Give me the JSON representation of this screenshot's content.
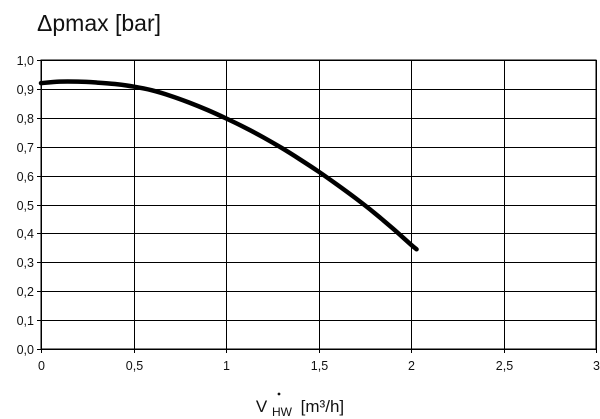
{
  "chart_data": {
    "type": "line",
    "title": "Δpmax [bar]",
    "xlabel": {
      "symbol": "V",
      "subscript": "HW",
      "unit": "[m³/h]"
    },
    "ylabel": "",
    "xlim": [
      0,
      3
    ],
    "ylim": [
      0,
      1
    ],
    "grid": true,
    "xticks": [
      {
        "value": 0,
        "label": "0"
      },
      {
        "value": 0.5,
        "label": "0,5"
      },
      {
        "value": 1,
        "label": "1"
      },
      {
        "value": 1.5,
        "label": "1,5"
      },
      {
        "value": 2,
        "label": "2"
      },
      {
        "value": 2.5,
        "label": "2,5"
      },
      {
        "value": 3,
        "label": "3"
      }
    ],
    "yticks": [
      {
        "value": 0.0,
        "label": "0,0"
      },
      {
        "value": 0.1,
        "label": "0,1"
      },
      {
        "value": 0.2,
        "label": "0,2"
      },
      {
        "value": 0.3,
        "label": "0,3"
      },
      {
        "value": 0.4,
        "label": "0,4"
      },
      {
        "value": 0.5,
        "label": "0,5"
      },
      {
        "value": 0.6,
        "label": "0,6"
      },
      {
        "value": 0.7,
        "label": "0,7"
      },
      {
        "value": 0.8,
        "label": "0,8"
      },
      {
        "value": 0.9,
        "label": "0,9"
      },
      {
        "value": 1.0,
        "label": "1,0"
      }
    ],
    "series": [
      {
        "color": "#000000",
        "x": [
          0,
          0.1,
          0.2,
          0.3,
          0.4,
          0.5,
          0.6,
          0.7,
          0.8,
          0.9,
          1.0,
          1.1,
          1.2,
          1.3,
          1.4,
          1.5,
          1.6,
          1.7,
          1.8,
          1.9,
          2.0,
          2.03
        ],
        "y": [
          0.92,
          0.925,
          0.925,
          0.922,
          0.917,
          0.908,
          0.895,
          0.876,
          0.853,
          0.827,
          0.798,
          0.767,
          0.733,
          0.696,
          0.656,
          0.614,
          0.569,
          0.522,
          0.472,
          0.418,
          0.361,
          0.345
        ]
      }
    ]
  }
}
